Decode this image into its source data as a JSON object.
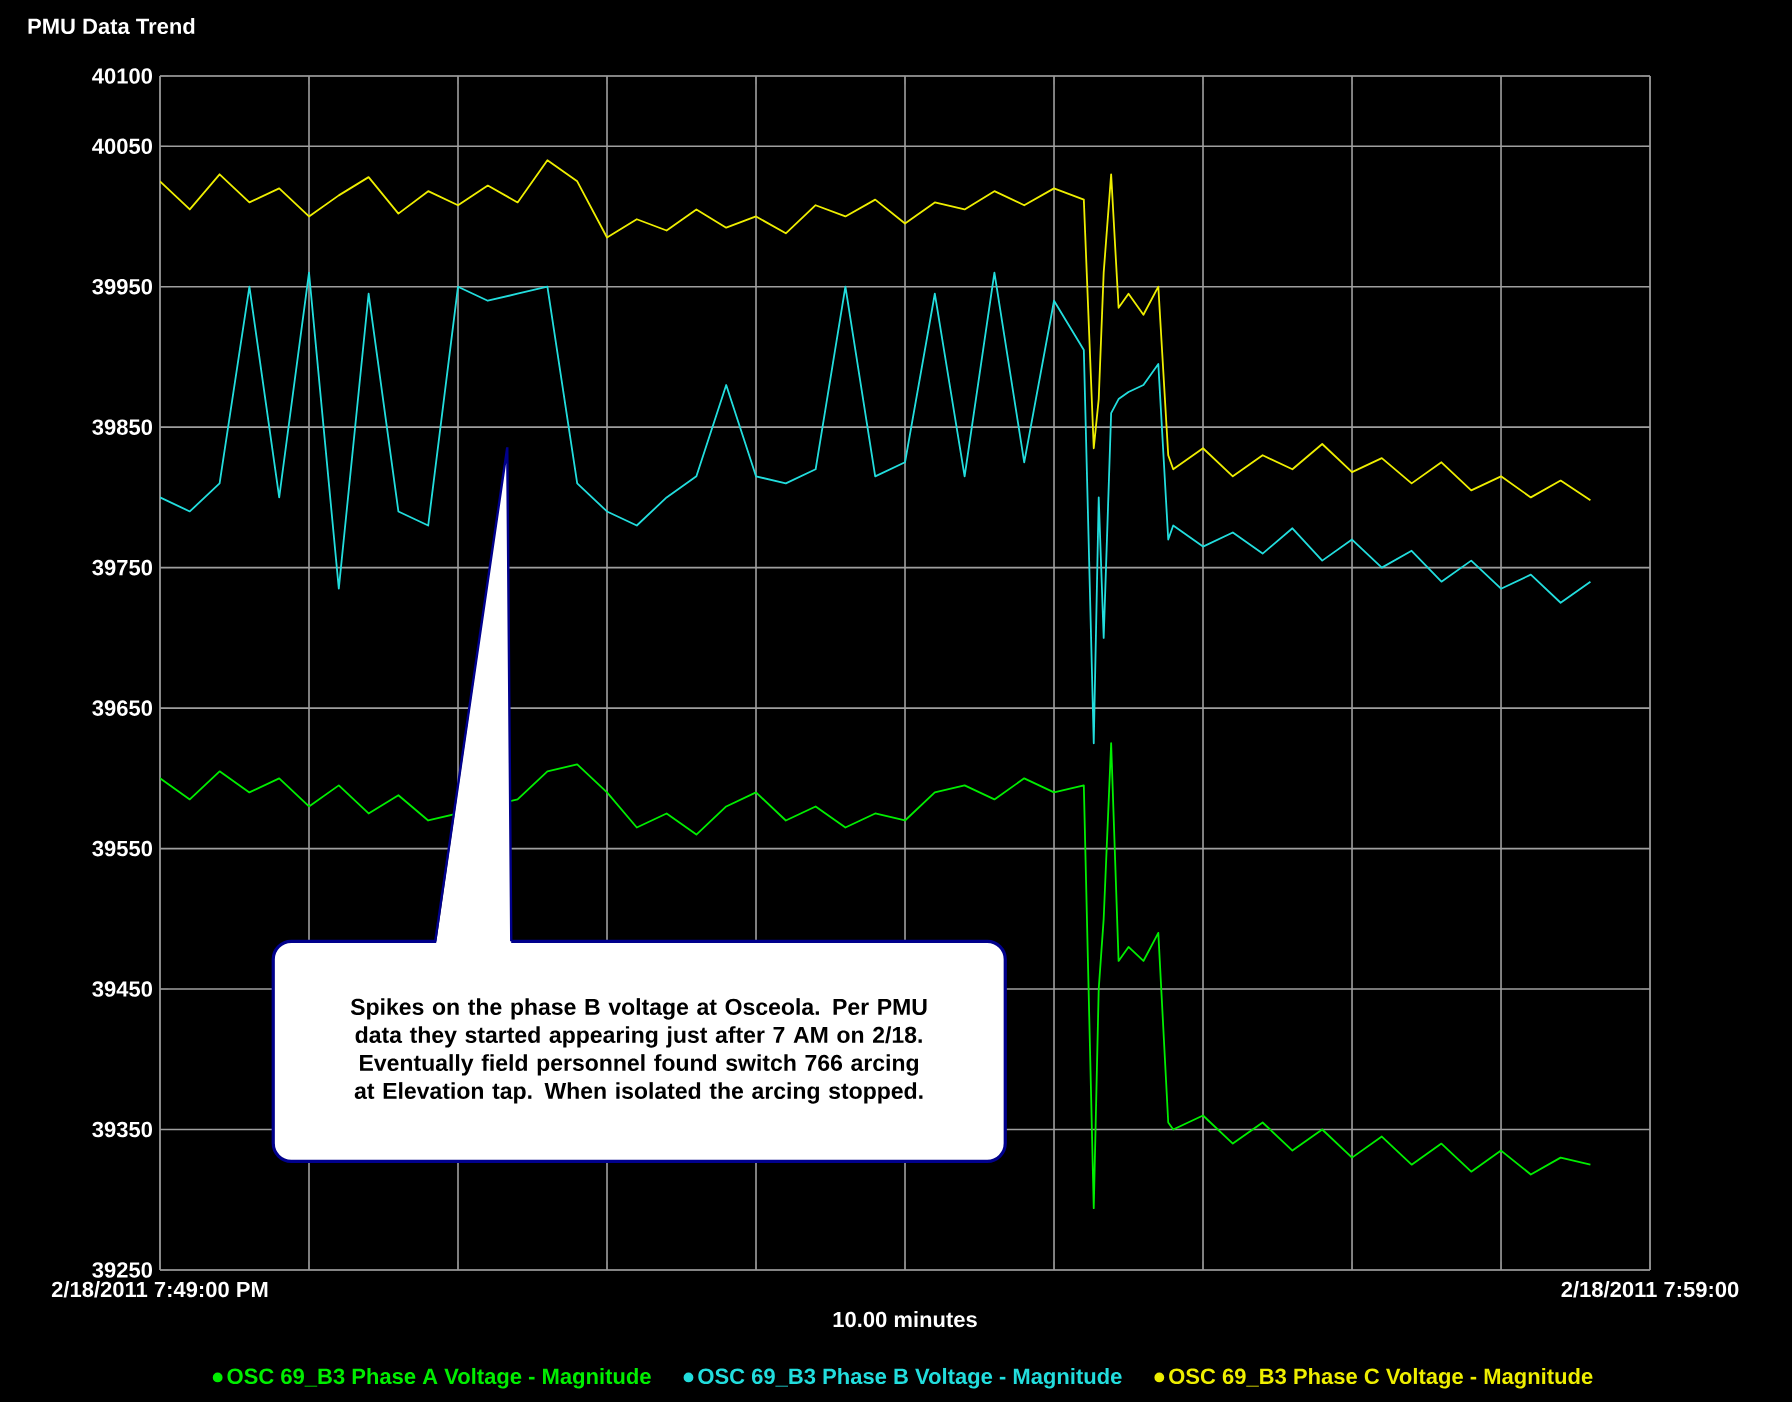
{
  "chart_data": {
    "type": "line",
    "title": "PMU Data Trend",
    "x": [
      "2011-02-18T19:49:00",
      "2011-02-18T19:49:12",
      "2011-02-18T19:49:24",
      "2011-02-18T19:49:36",
      "2011-02-18T19:49:48",
      "2011-02-18T19:50:00",
      "2011-02-18T19:50:12",
      "2011-02-18T19:50:24",
      "2011-02-18T19:50:36",
      "2011-02-18T19:50:48",
      "2011-02-18T19:51:00",
      "2011-02-18T19:51:12",
      "2011-02-18T19:51:24",
      "2011-02-18T19:51:36",
      "2011-02-18T19:51:48",
      "2011-02-18T19:52:00",
      "2011-02-18T19:52:12",
      "2011-02-18T19:52:24",
      "2011-02-18T19:52:36",
      "2011-02-18T19:52:48",
      "2011-02-18T19:53:00",
      "2011-02-18T19:53:12",
      "2011-02-18T19:53:24",
      "2011-02-18T19:53:36",
      "2011-02-18T19:53:48",
      "2011-02-18T19:54:00",
      "2011-02-18T19:54:12",
      "2011-02-18T19:54:24",
      "2011-02-18T19:54:36",
      "2011-02-18T19:54:48",
      "2011-02-18T19:55:00",
      "2011-02-18T19:55:12",
      "2011-02-18T19:55:16",
      "2011-02-18T19:55:18",
      "2011-02-18T19:55:20",
      "2011-02-18T19:55:23",
      "2011-02-18T19:55:26",
      "2011-02-18T19:55:30",
      "2011-02-18T19:55:36",
      "2011-02-18T19:55:42",
      "2011-02-18T19:55:46",
      "2011-02-18T19:55:48",
      "2011-02-18T19:56:00",
      "2011-02-18T19:56:12",
      "2011-02-18T19:56:24",
      "2011-02-18T19:56:36",
      "2011-02-18T19:56:48",
      "2011-02-18T19:57:00",
      "2011-02-18T19:57:12",
      "2011-02-18T19:57:24",
      "2011-02-18T19:57:36",
      "2011-02-18T19:57:48",
      "2011-02-18T19:58:00",
      "2011-02-18T19:58:12",
      "2011-02-18T19:58:24",
      "2011-02-18T19:58:36"
    ],
    "xlim": [
      "2011-02-18T19:49",
      "2011-02-18T19:59"
    ],
    "xticks": [
      {
        "value": "2011-02-18T19:49",
        "label": "2/18/2011 7:49:00 PM"
      },
      {
        "value": "2011-02-18T19:50",
        "label": null
      },
      {
        "value": "2011-02-18T19:51",
        "label": null
      },
      {
        "value": "2011-02-18T19:52",
        "label": null
      },
      {
        "value": "2011-02-18T19:53",
        "label": null
      },
      {
        "value": "2011-02-18T19:54",
        "label": null
      },
      {
        "value": "2011-02-18T19:55",
        "label": null
      },
      {
        "value": "2011-02-18T19:56",
        "label": null
      },
      {
        "value": "2011-02-18T19:57",
        "label": null
      },
      {
        "value": "2011-02-18T19:58",
        "label": null
      },
      {
        "value": "2011-02-18T19:59",
        "label": "2/18/2011 7:59:00"
      }
    ],
    "ylim": [
      39250,
      40100
    ],
    "yticks": [
      40100,
      40050,
      39950,
      39850,
      39750,
      39650,
      39550,
      39450,
      39350,
      39250
    ],
    "grid": true,
    "legend": "bottom",
    "annotations": [
      "Spikes on the phase B voltage at Osceola.  Per PMU data they started appearing just after 7 AM on 2/18.  Eventually field personnel found switch 766 arcing at Elevation tap. When isolated the arcing stopped.",
      "10.00 minutes"
    ],
    "series": [
      {
        "name": "OSC 69_B3 Phase A Voltage - Magnitude",
        "color": "#00ee00",
        "values": [
          39600,
          39585,
          39605,
          39590,
          39600,
          39580,
          39595,
          39575,
          39588,
          39570,
          null,
          null,
          39585,
          39605,
          39610,
          39590,
          39565,
          39575,
          39560,
          39580,
          39590,
          39570,
          39580,
          39565,
          39575,
          39570,
          39590,
          39595,
          39585,
          39600,
          39590,
          39595,
          39294,
          39450,
          39500,
          39625,
          39470,
          39480,
          39470,
          39490,
          39355,
          39350,
          39360,
          39340,
          39355,
          39335,
          39350,
          39330,
          39345,
          39325,
          39340,
          39320,
          39335,
          39318,
          39330,
          39325
        ]
      },
      {
        "name": "OSC 69_B3 Phase B Voltage - Magnitude",
        "color": "#22dddd",
        "values": [
          39800,
          39790,
          39810,
          39950,
          39800,
          39960,
          39735,
          39945,
          39790,
          39780,
          39950,
          39940,
          39945,
          39950,
          39810,
          39790,
          39780,
          39800,
          39815,
          39880,
          39815,
          39810,
          39820,
          39950,
          39815,
          39825,
          39945,
          39815,
          39960,
          39825,
          39940,
          39905,
          39625,
          39800,
          39700,
          39860,
          39870,
          39875,
          39880,
          39895,
          39770,
          39780,
          39765,
          39775,
          39760,
          39778,
          39755,
          39770,
          39750,
          39762,
          39740,
          39755,
          39735,
          39745,
          39725,
          39740
        ]
      },
      {
        "name": "OSC 69_B3 Phase C Voltage - Magnitude",
        "color": "#eeee00",
        "values": [
          40025,
          40005,
          40030,
          40010,
          40020,
          40000,
          40015,
          40028,
          40002,
          40018,
          40008,
          40022,
          40010,
          40040,
          40025,
          39985,
          39998,
          39990,
          40005,
          39992,
          40000,
          39988,
          40008,
          40000,
          40012,
          39995,
          40010,
          40005,
          40018,
          40008,
          40020,
          40012,
          39835,
          39870,
          39960,
          40030,
          39935,
          39945,
          39930,
          39950,
          39830,
          39820,
          39835,
          39815,
          39830,
          39820,
          39838,
          39818,
          39828,
          39810,
          39825,
          39805,
          39815,
          39800,
          39812,
          39798
        ]
      }
    ]
  }
}
